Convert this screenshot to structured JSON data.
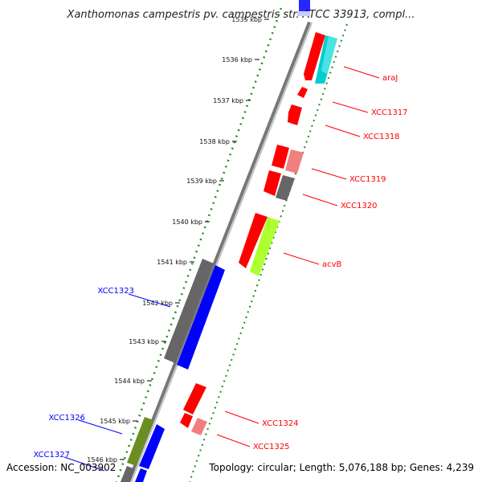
{
  "title": "Xanthomonas campestris pv. campestris str. ATCC 33913, compl...",
  "footer": {
    "accession": "Accession: NC_003902",
    "topology": "Topology: circular; Length: 5,076,188 bp; Genes: 4,239"
  },
  "colors": {
    "backbone": "#808080",
    "forward_ticks": "#228b22",
    "reverse_gene": "#ff0000",
    "forward_gene": "#0000ff",
    "label_reverse": "#ff0000",
    "label_forward": "#0000ff"
  },
  "ticks": [
    {
      "label": "1535 kbp",
      "faded": true
    },
    {
      "label": "1536 kbp"
    },
    {
      "label": "1537 kbp"
    },
    {
      "label": "1538 kbp"
    },
    {
      "label": "1539 kbp"
    },
    {
      "label": "1540 kbp"
    },
    {
      "label": "1541 kbp"
    },
    {
      "label": "1542 kbp"
    },
    {
      "label": "1543 kbp"
    },
    {
      "label": "1544 kbp"
    },
    {
      "label": "1545 kbp"
    },
    {
      "label": "1546 kbp",
      "faded": true
    }
  ],
  "gene_labels": [
    {
      "text": "araJ",
      "strand": "reverse"
    },
    {
      "text": "XCC1317",
      "strand": "reverse"
    },
    {
      "text": "XCC1318",
      "strand": "reverse"
    },
    {
      "text": "XCC1319",
      "strand": "reverse"
    },
    {
      "text": "XCC1320",
      "strand": "reverse"
    },
    {
      "text": "acvB",
      "strand": "reverse"
    },
    {
      "text": "XCC1323",
      "strand": "forward"
    },
    {
      "text": "XCC1324",
      "strand": "reverse"
    },
    {
      "text": "XCC1325",
      "strand": "reverse"
    },
    {
      "text": "XCC1326",
      "strand": "forward"
    },
    {
      "text": "XCC1327",
      "strand": "forward"
    }
  ]
}
